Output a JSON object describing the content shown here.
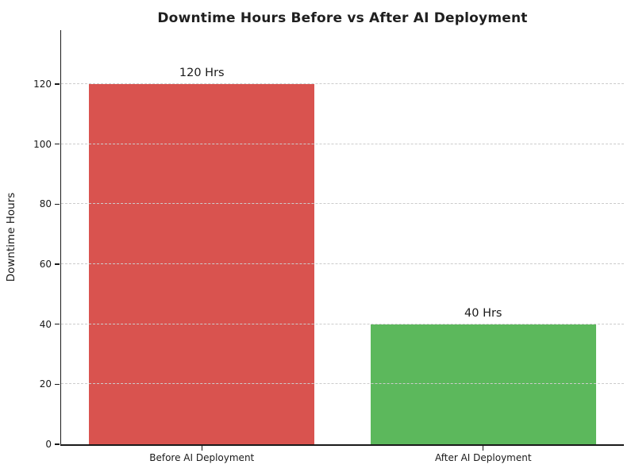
{
  "chart_data": {
    "type": "bar",
    "title": "Downtime Hours Before vs After AI Deployment",
    "xlabel": "",
    "ylabel": "Downtime Hours",
    "categories": [
      "Before AI Deployment",
      "After AI Deployment"
    ],
    "values": [
      120,
      40
    ],
    "bar_labels": [
      "120 Hrs",
      "40 Hrs"
    ],
    "bar_colors": [
      "#d9534f",
      "#5cb85c"
    ],
    "yticks": [
      0,
      20,
      40,
      60,
      80,
      100,
      120
    ],
    "ylim": [
      0,
      138
    ],
    "bar_width_fraction": 0.8,
    "grid": "horizontal dashed, drawn over bars",
    "grid_color": "#cccccc",
    "background_color": "#ffffff",
    "legend": "none"
  }
}
